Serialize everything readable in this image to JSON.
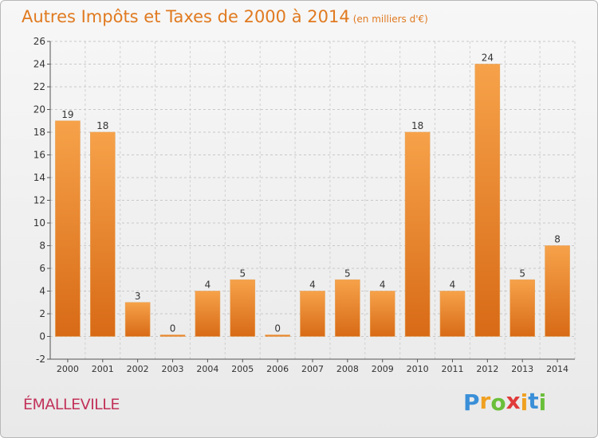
{
  "chart_data": {
    "type": "bar",
    "title": "Autres Impôts et Taxes de 2000 à 2014",
    "subtitle": "(en milliers d'€)",
    "categories": [
      "2000",
      "2001",
      "2002",
      "2003",
      "2004",
      "2005",
      "2006",
      "2007",
      "2008",
      "2009",
      "2010",
      "2011",
      "2012",
      "2013",
      "2014"
    ],
    "values": [
      19,
      18,
      3,
      0,
      4,
      5,
      0,
      4,
      5,
      4,
      18,
      4,
      24,
      5,
      8
    ],
    "ylim": [
      -2,
      26
    ],
    "yticks": [
      -2,
      0,
      2,
      4,
      6,
      8,
      10,
      12,
      14,
      16,
      18,
      20,
      22,
      24,
      26
    ],
    "grid": true,
    "bar_color": "#f0912f"
  },
  "footer": {
    "place": "ÉMALLEVILLE",
    "logo": [
      "P",
      "r",
      "o",
      "x",
      "i",
      "t",
      "i"
    ],
    "logo_colors": [
      "#3a8fd8",
      "#f0a020",
      "#6abf3a",
      "#e03a3a",
      "#f0a020",
      "#3a8fd8",
      "#6abf3a"
    ]
  }
}
